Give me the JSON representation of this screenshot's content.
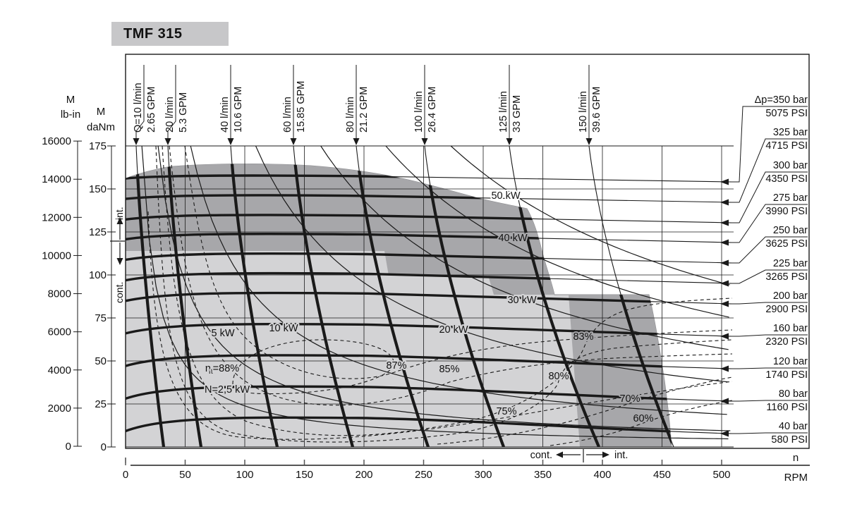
{
  "title": "TMF 315",
  "chart_data": {
    "type": "line",
    "title": "TMF 315",
    "x_axis": {
      "name": "n",
      "unit": "RPM",
      "min": 0,
      "max": 510,
      "ticks": [
        0,
        50,
        100,
        150,
        200,
        250,
        300,
        350,
        400,
        450,
        500
      ]
    },
    "y_axis_lb_in": {
      "name": "M",
      "unit": "lb-in",
      "ticks": [
        0,
        2000,
        4000,
        6000,
        8000,
        10000,
        12000,
        14000,
        16000
      ]
    },
    "y_axis_daNm": {
      "name": "M",
      "unit": "daNm",
      "ticks": [
        0,
        25,
        50,
        75,
        100,
        125,
        150,
        175
      ]
    },
    "flow_lines": [
      {
        "l_min": 10,
        "gpm": 2.65,
        "label_l_min": "Q=10 l/min",
        "label_gpm": "2.65 GPM"
      },
      {
        "l_min": 20,
        "gpm": 5.3,
        "label_l_min": "20 l/min",
        "label_gpm": "5.3 GPM"
      },
      {
        "l_min": 40,
        "gpm": 10.6,
        "label_l_min": "40 l/min",
        "label_gpm": "10.6 GPM"
      },
      {
        "l_min": 60,
        "gpm": 15.85,
        "label_l_min": "60 l/min",
        "label_gpm": "15.85 GPM"
      },
      {
        "l_min": 80,
        "gpm": 21.2,
        "label_l_min": "80 l/min",
        "label_gpm": "21.2 GPM"
      },
      {
        "l_min": 100,
        "gpm": 26.4,
        "label_l_min": "100 l/min",
        "label_gpm": "26.4 GPM"
      },
      {
        "l_min": 125,
        "gpm": 33,
        "label_l_min": "125 l/min",
        "label_gpm": "33 GPM"
      },
      {
        "l_min": 150,
        "gpm": 39.6,
        "label_l_min": "150 l/min",
        "label_gpm": "39.6 GPM"
      }
    ],
    "pressure_lines": [
      {
        "bar": 350,
        "psi": 5075,
        "label_bar": "Δp=350 bar",
        "label_psi": "5075 PSI"
      },
      {
        "bar": 325,
        "psi": 4715,
        "label_bar": "325 bar",
        "label_psi": "4715 PSI"
      },
      {
        "bar": 300,
        "psi": 4350,
        "label_bar": "300 bar",
        "label_psi": "4350 PSI"
      },
      {
        "bar": 275,
        "psi": 3990,
        "label_bar": "275 bar",
        "label_psi": "3990 PSI"
      },
      {
        "bar": 250,
        "psi": 3625,
        "label_bar": "250 bar",
        "label_psi": "3625 PSI"
      },
      {
        "bar": 225,
        "psi": 3265,
        "label_bar": "225 bar",
        "label_psi": "3265 PSI"
      },
      {
        "bar": 200,
        "psi": 2900,
        "label_bar": "200 bar",
        "label_psi": "2900 PSI"
      },
      {
        "bar": 160,
        "psi": 2320,
        "label_bar": "160 bar",
        "label_psi": "2320 PSI"
      },
      {
        "bar": 120,
        "psi": 1740,
        "label_bar": "120 bar",
        "label_psi": "1740 PSI"
      },
      {
        "bar": 80,
        "psi": 1160,
        "label_bar": "80 bar",
        "label_psi": "1160 PSI"
      },
      {
        "bar": 40,
        "psi": 580,
        "label_bar": "40 bar",
        "label_psi": "580 PSI"
      }
    ],
    "power_curves": [
      {
        "kw": 2.5,
        "label": "N=2,5 kW"
      },
      {
        "kw": 5,
        "label": "5 kW"
      },
      {
        "kw": 10,
        "label": "10 kW"
      },
      {
        "kw": 20,
        "label": "20 kW"
      },
      {
        "kw": 30,
        "label": "30 kW"
      },
      {
        "kw": 40,
        "label": "40 kW"
      },
      {
        "kw": 50,
        "label": "50 kW"
      }
    ],
    "efficiency_contours": [
      {
        "percent": 88,
        "prefix": "η",
        "sub": "t",
        "label": "=88%"
      },
      {
        "percent": 87,
        "label": "87%"
      },
      {
        "percent": 85,
        "label": "85%"
      },
      {
        "percent": 83,
        "label": "83%"
      },
      {
        "percent": 80,
        "label": "80%"
      },
      {
        "percent": 75,
        "label": "75%"
      },
      {
        "percent": 70,
        "label": "70%"
      },
      {
        "percent": 60,
        "label": "60%"
      }
    ],
    "operating_regions": {
      "continuous": "cont.",
      "intermittent": "int."
    },
    "colors": {
      "continuous_fill": "#d3d3d5",
      "intermittent_fill": "#a7a7aa",
      "title_bg": "#c7c7c9",
      "line": "#1a1a1a"
    },
    "legend_position": "none",
    "grid": true
  }
}
